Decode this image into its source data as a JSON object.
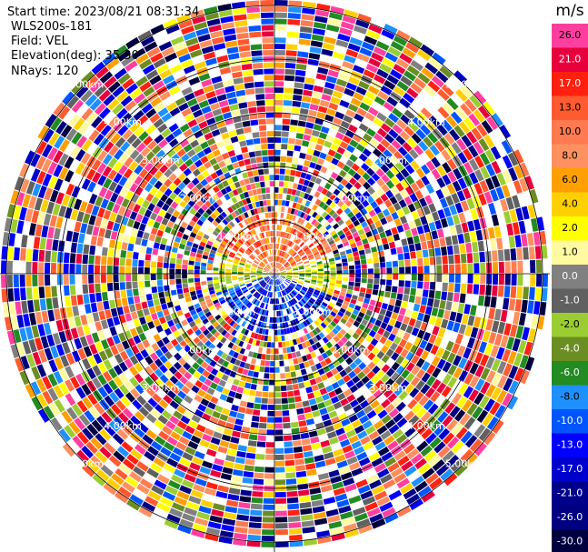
{
  "header": {
    "start_time": "Start time: 2023/08/21 08:31:34",
    "instrument": "WLS200s-181",
    "field": "Field: VEL",
    "elevation": "Elevation(deg): 35.30",
    "nrays": "NRays: 120"
  },
  "colorbar": {
    "unit": "m/s",
    "ticks": [
      "26.0",
      "21.0",
      "17.0",
      "13.0",
      "10.0",
      "8.0",
      "6.0",
      "4.0",
      "2.0",
      "1.0",
      "0.0",
      "-1.0",
      "-2.0",
      "-4.0",
      "-6.0",
      "-8.0",
      "-10.0",
      "-13.0",
      "-17.0",
      "-21.0",
      "-26.0",
      "-30.0"
    ],
    "colors": [
      "#ff3fa0",
      "#e8003c",
      "#ff2010",
      "#ff5a30",
      "#ff7a50",
      "#ff9060",
      "#ffa000",
      "#ffd000",
      "#ffff00",
      "#fffaa0",
      "#808080",
      "#606060",
      "#9acd32",
      "#6b8e23",
      "#228b22",
      "#1e90ff",
      "#0055ff",
      "#0000ff",
      "#0000cd",
      "#00008b",
      "#000080",
      "#000040"
    ]
  },
  "chart_data": {
    "type": "heatmap",
    "projection": "polar PPI",
    "field": "VEL",
    "units": "m/s",
    "n_rays": 120,
    "elevation_deg": 35.3,
    "range_ring_labels": [
      "1.00km",
      "2.00km",
      "3.00km",
      "4.00km",
      "5.00km"
    ],
    "ring_label_km": [
      "1.00",
      "2.00",
      "3.00",
      "4.00",
      "5.00"
    ],
    "color_scale": {
      "min": -30.0,
      "max": 26.0
    },
    "near_range_pattern": "north sector positive (red/orange), south sector negative (blue), noisy beyond ~1 km"
  }
}
